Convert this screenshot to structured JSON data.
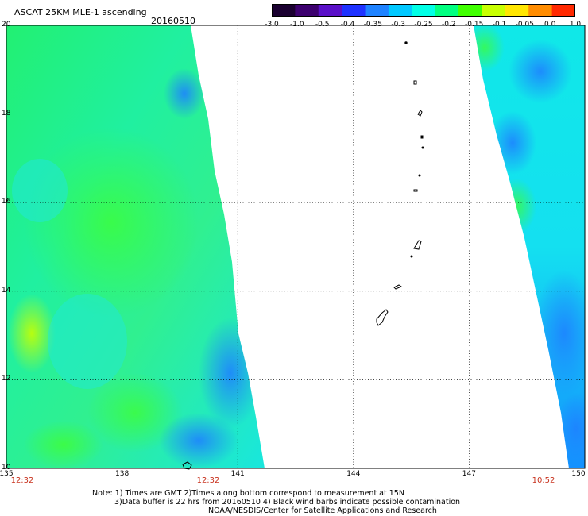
{
  "header": {
    "title": "ASCAT 25KM MLE-1 ascending",
    "date": "20160510"
  },
  "colorbar": {
    "labels": [
      "-3.0",
      "-1.0",
      "-0.5",
      "-0.4",
      "-0.35",
      "-0.3",
      "-0.25",
      "-0.2",
      "-0.15",
      "-0.1",
      "-0.05",
      "0.0",
      "1.0"
    ],
    "colors": [
      "#1a0030",
      "#3c006e",
      "#5a10c8",
      "#1e32ff",
      "#1e82ff",
      "#00c8ff",
      "#00ffe6",
      "#00ff80",
      "#40ff00",
      "#c8ff00",
      "#ffe600",
      "#ff8c00",
      "#ff2800"
    ]
  },
  "map": {
    "lat_labels": [
      "20",
      "18",
      "16",
      "14",
      "12",
      "10"
    ],
    "lon_labels": [
      "135",
      "138",
      "141",
      "144",
      "147",
      "150"
    ],
    "lat_range": [
      10,
      20
    ],
    "lon_range": [
      135,
      150
    ],
    "grid": "dotted",
    "swath_times": [
      "12:32",
      "12:32",
      "10:52"
    ]
  },
  "footer": {
    "line1": "Note: 1) Times are GMT 2)Times along bottom correspond to measurement at 15N",
    "line2": "3)Data buffer is 22 hrs from 20160510 4) Black wind barbs indicate possible contamination",
    "line3": "NOAA/NESDIS/Center for Satellite Applications and Research"
  }
}
